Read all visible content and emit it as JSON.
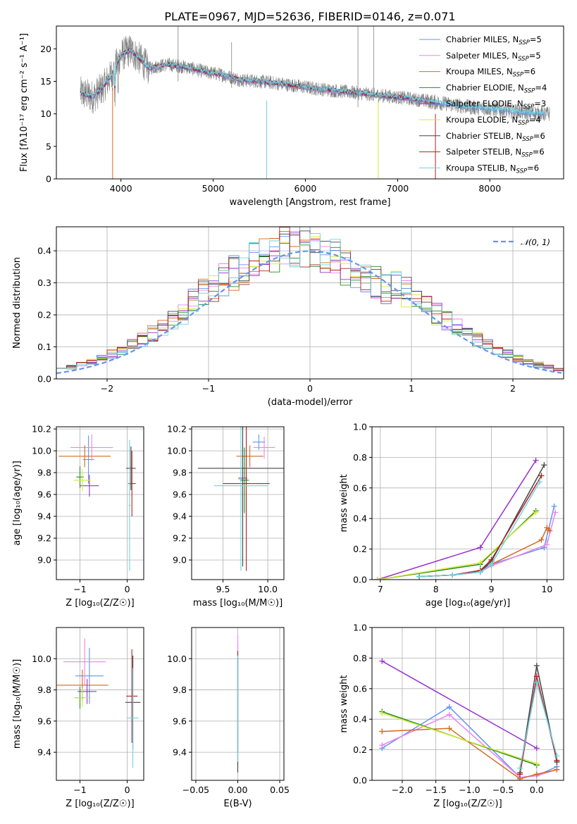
{
  "colors": [
    "#6495ed",
    "#ee82ee",
    "#d2691e",
    "#228b22",
    "#9932cc",
    "#d4e836",
    "#444444",
    "#b22222",
    "#6fd3e0"
  ],
  "figure_title": "PLATE=0967, MJD=52636, FIBERID=0146, z=0.071",
  "chart_data": [
    {
      "id": "spectrum",
      "type": "line",
      "xlabel": "wavelength [Angstrom, rest frame]",
      "ylabel": "Flux [fλ10⁻¹⁷ erg cm⁻² s⁻¹ A⁻¹]",
      "xlim": [
        3300,
        8800
      ],
      "ylim": [
        0,
        23.5
      ],
      "xticks": [
        4000,
        5000,
        6000,
        7000,
        8000
      ],
      "yticks": [
        0,
        5,
        10,
        15,
        20
      ],
      "grid": false,
      "legend_position": "top-right",
      "observed": {
        "x": [
          3560,
          3700,
          3800,
          3900,
          4000,
          4100,
          4200,
          4300,
          4500,
          4700,
          4900,
          5100,
          5300,
          5500,
          5700,
          5900,
          6100,
          6300,
          6500,
          6700,
          6900,
          7100,
          7300,
          7400,
          7600,
          7800,
          8000,
          8200,
          8400,
          8600
        ],
        "y": [
          13.2,
          12.6,
          14.0,
          16.0,
          19.0,
          19.8,
          18.5,
          17.0,
          17.6,
          17.2,
          16.5,
          16.0,
          15.2,
          15.0,
          14.7,
          14.3,
          13.9,
          13.6,
          13.3,
          13.0,
          12.7,
          12.4,
          12.0,
          11.8,
          11.4,
          11.0,
          10.8,
          10.5,
          10.2,
          10.0
        ]
      },
      "series": [
        {
          "name": "Chabrier MILES, N_SSP=5"
        },
        {
          "name": "Salpeter MILES, N_SSP=5"
        },
        {
          "name": "Kroupa MILES, N_SSP=6"
        },
        {
          "name": "Chabrier ELODIE, N_SSP=4"
        },
        {
          "name": "Salpeter ELODIE, N_SSP=3"
        },
        {
          "name": "Kroupa ELODIE, N_SSP=4"
        },
        {
          "name": "Chabrier STELIB, N_SSP=6"
        },
        {
          "name": "Salpeter STELIB, N_SSP=6"
        },
        {
          "name": "Kroupa STELIB, N_SSP=6"
        }
      ]
    },
    {
      "id": "residuals",
      "type": "histogram",
      "xlabel": "(data-model)/error",
      "ylabel": "Normed distribution",
      "xlim": [
        -2.5,
        2.5
      ],
      "ylim": [
        0,
        0.475
      ],
      "xticks": [
        -2,
        -1,
        0,
        1,
        2
      ],
      "yticks": [
        0.0,
        0.1,
        0.2,
        0.3,
        0.4
      ],
      "grid": true,
      "legend_position": "top-right",
      "reference": {
        "name": "𝒩(0, 1)",
        "mean": 0,
        "sigma": 1
      },
      "bin_width": 0.1
    },
    {
      "id": "age-vs-Z",
      "type": "errorbar",
      "xlabel": "Z [log₁₀(Z/Z☉)]",
      "ylabel": "age  [log₁₀(age/yr)]",
      "xlim": [
        -1.5,
        0.35
      ],
      "ylim": [
        8.82,
        10.22
      ],
      "xticks": [
        -1,
        0
      ],
      "yticks": [
        9.0,
        9.2,
        9.4,
        9.6,
        9.8,
        10.0,
        10.2
      ],
      "grid": true,
      "points": [
        {
          "x": -0.82,
          "xerr": 0.12,
          "y": 9.92,
          "yerr": 0.22
        },
        {
          "x": -0.75,
          "xerr": 0.45,
          "y": 10.03,
          "yerr": 0.12
        },
        {
          "x": -0.9,
          "xerr": 0.55,
          "y": 9.95,
          "yerr": 0.1
        },
        {
          "x": -1.0,
          "xerr": 0.08,
          "y": 9.76,
          "yerr": 0.1
        },
        {
          "x": -0.8,
          "xerr": 0.2,
          "y": 9.68,
          "yerr": 0.1
        },
        {
          "x": -0.95,
          "xerr": 0.18,
          "y": 9.73,
          "yerr": 0.1
        },
        {
          "x": 0.08,
          "xerr": 0.1,
          "y": 9.84,
          "yerr": 0.2
        },
        {
          "x": 0.1,
          "xerr": 0.08,
          "y": 9.7,
          "yerr": 0.3
        },
        {
          "x": 0.05,
          "xerr": 0.02,
          "y": 9.5,
          "yerr": 0.6
        }
      ]
    },
    {
      "id": "age-vs-mass",
      "type": "errorbar",
      "xlabel": "mass [log₁₀(M/M☉)]",
      "ylabel": "",
      "xlim": [
        9.15,
        10.18
      ],
      "ylim": [
        8.82,
        10.22
      ],
      "xticks": [
        9.5,
        10.0
      ],
      "yticks": [
        9.0,
        9.2,
        9.4,
        9.6,
        9.8,
        10.0,
        10.2
      ],
      "grid": true,
      "points": [
        {
          "x": 9.9,
          "xerr": 0.07,
          "y": 10.08,
          "yerr": 0.07
        },
        {
          "x": 9.96,
          "xerr": 0.12,
          "y": 10.03,
          "yerr": 0.1
        },
        {
          "x": 9.8,
          "xerr": 0.15,
          "y": 9.95,
          "yerr": 0.1
        },
        {
          "x": 9.74,
          "xerr": 0.05,
          "y": 9.73,
          "yerr": 0.3
        },
        {
          "x": 9.72,
          "xerr": 0.05,
          "y": 9.75,
          "yerr": 0.3
        },
        {
          "x": 9.72,
          "xerr": 0.05,
          "y": 9.74,
          "yerr": 0.3
        },
        {
          "x": 9.72,
          "xerr": 0.5,
          "y": 9.84,
          "yerr": 0.9
        },
        {
          "x": 9.76,
          "xerr": 0.26,
          "y": 9.7,
          "yerr": 0.8
        },
        {
          "x": 9.7,
          "xerr": 0.3,
          "y": 9.68,
          "yerr": 0.78
        }
      ]
    },
    {
      "id": "massweight-vs-age",
      "type": "line",
      "xlabel": "age  [log₁₀(age/yr)]",
      "ylabel": "mass weight",
      "xlim": [
        6.85,
        10.3
      ],
      "ylim": [
        0,
        1
      ],
      "xticks": [
        7,
        8,
        9,
        10
      ],
      "yticks": [
        0.0,
        0.2,
        0.4,
        0.6,
        0.8,
        1.0
      ],
      "grid": true,
      "series": [
        {
          "x": [
            7.7,
            8.3,
            8.8,
            9.0,
            9.95,
            10.13
          ],
          "y": [
            0.02,
            0.03,
            0.06,
            0.1,
            0.21,
            0.48
          ]
        },
        {
          "x": [
            7.7,
            8.3,
            8.8,
            9.0,
            10.0,
            10.15
          ],
          "y": [
            0.02,
            0.03,
            0.05,
            0.09,
            0.23,
            0.44
          ]
        },
        {
          "x": [
            7.7,
            8.3,
            8.8,
            9.0,
            9.9,
            10.0,
            10.05
          ],
          "y": [
            0.02,
            0.03,
            0.05,
            0.1,
            0.26,
            0.34,
            0.32
          ]
        },
        {
          "x": [
            6.95,
            8.8,
            9.8
          ],
          "y": [
            0.0,
            0.1,
            0.45
          ]
        },
        {
          "x": [
            6.95,
            8.8,
            9.8
          ],
          "y": [
            0.0,
            0.21,
            0.78
          ]
        },
        {
          "x": [
            6.95,
            8.8,
            9.8
          ],
          "y": [
            0.0,
            0.11,
            0.44
          ]
        },
        {
          "x": [
            7.7,
            8.3,
            8.8,
            9.0,
            9.95
          ],
          "y": [
            0.02,
            0.03,
            0.05,
            0.12,
            0.75
          ]
        },
        {
          "x": [
            7.7,
            8.3,
            8.8,
            9.0,
            9.9
          ],
          "y": [
            0.02,
            0.03,
            0.06,
            0.13,
            0.68
          ]
        },
        {
          "x": [
            7.7,
            8.3,
            8.8,
            9.0,
            9.87
          ],
          "y": [
            0.02,
            0.03,
            0.05,
            0.1,
            0.64
          ]
        }
      ]
    },
    {
      "id": "mass-vs-Z",
      "type": "errorbar",
      "xlabel": "Z [log₁₀(Z/Z☉)]",
      "ylabel": "mass [log₁₀(M/M☉)]",
      "xlim": [
        -1.5,
        0.35
      ],
      "ylim": [
        9.22,
        10.2
      ],
      "xticks": [
        -1,
        0
      ],
      "yticks": [
        9.4,
        9.6,
        9.8,
        10.0
      ],
      "grid": true,
      "points": [
        {
          "x": -0.8,
          "xerr": 0.3,
          "y": 9.89,
          "yerr": 0.18
        },
        {
          "x": -0.9,
          "xerr": 0.45,
          "y": 9.98,
          "yerr": 0.15
        },
        {
          "x": -0.95,
          "xerr": 0.55,
          "y": 9.83,
          "yerr": 0.1
        },
        {
          "x": -1.0,
          "xerr": 0.1,
          "y": 9.75,
          "yerr": 0.07
        },
        {
          "x": -0.85,
          "xerr": 0.2,
          "y": 9.79,
          "yerr": 0.08
        },
        {
          "x": -0.95,
          "xerr": 0.18,
          "y": 9.75,
          "yerr": 0.06
        },
        {
          "x": 0.12,
          "xerr": 0.16,
          "y": 9.72,
          "yerr": 0.3
        },
        {
          "x": 0.1,
          "xerr": 0.12,
          "y": 9.76,
          "yerr": 0.3
        },
        {
          "x": 0.12,
          "xerr": 0.12,
          "y": 9.62,
          "yerr": 0.32
        }
      ]
    },
    {
      "id": "mass-vs-EBV",
      "type": "errorbar",
      "xlabel": "E(B-V)",
      "ylabel": "",
      "xlim": [
        -0.055,
        0.055
      ],
      "ylim": [
        9.22,
        10.2
      ],
      "xticks": [
        -0.05,
        0.0,
        0.05
      ],
      "yticks": [
        9.4,
        9.6,
        9.8,
        10.0
      ],
      "grid": true,
      "points": [
        {
          "x": 0,
          "xerr": 0,
          "y": 9.7,
          "yerr": 0.4
        },
        {
          "x": 0,
          "xerr": 0,
          "y": 9.8,
          "yerr": 0.35
        },
        {
          "x": 0,
          "xerr": 0,
          "y": 9.7,
          "yerr": 0.3
        },
        {
          "x": 0,
          "xerr": 0,
          "y": 9.7,
          "yerr": 0.3
        },
        {
          "x": 0,
          "xerr": 0,
          "y": 9.7,
          "yerr": 0.3
        },
        {
          "x": 0,
          "xerr": 0,
          "y": 9.7,
          "yerr": 0.3
        },
        {
          "x": 0,
          "xerr": 0,
          "y": 9.65,
          "yerr": 0.38
        },
        {
          "x": 0,
          "xerr": 0,
          "y": 9.7,
          "yerr": 0.35
        },
        {
          "x": 0,
          "xerr": 0,
          "y": 9.68,
          "yerr": 0.34
        }
      ]
    },
    {
      "id": "massweight-vs-Z",
      "type": "line",
      "xlabel": "Z [log₁₀(Z/Z☉)]",
      "ylabel": "mass weight",
      "xlim": [
        -2.45,
        0.4
      ],
      "ylim": [
        0,
        1
      ],
      "xticks": [
        -2.0,
        -1.5,
        -1.0,
        -0.5,
        0.0
      ],
      "yticks": [
        0.0,
        0.2,
        0.4,
        0.6,
        0.8,
        1.0
      ],
      "grid": true,
      "series": [
        {
          "x": [
            -2.3,
            -1.3,
            -0.25,
            0.0,
            0.3
          ],
          "y": [
            0.21,
            0.48,
            0.02,
            0.03,
            0.09
          ]
        },
        {
          "x": [
            -2.3,
            -1.3,
            -0.25,
            0.0,
            0.3
          ],
          "y": [
            0.23,
            0.43,
            0.02,
            0.03,
            0.07
          ]
        },
        {
          "x": [
            -2.3,
            -1.3,
            -0.25,
            0.0,
            0.3
          ],
          "y": [
            0.32,
            0.34,
            0.01,
            0.04,
            0.07
          ]
        },
        {
          "x": [
            -2.3,
            0.0
          ],
          "y": [
            0.45,
            0.1
          ]
        },
        {
          "x": [
            -2.3,
            0.0
          ],
          "y": [
            0.78,
            0.21
          ]
        },
        {
          "x": [
            -2.3,
            0.0
          ],
          "y": [
            0.44,
            0.11
          ]
        },
        {
          "x": [
            -0.25,
            0.0,
            0.3
          ],
          "y": [
            0.05,
            0.75,
            0.12
          ]
        },
        {
          "x": [
            -0.25,
            0.0,
            0.3
          ],
          "y": [
            0.04,
            0.68,
            0.13
          ]
        },
        {
          "x": [
            -0.25,
            0.0,
            0.3
          ],
          "y": [
            0.08,
            0.64,
            0.16
          ]
        }
      ]
    }
  ]
}
